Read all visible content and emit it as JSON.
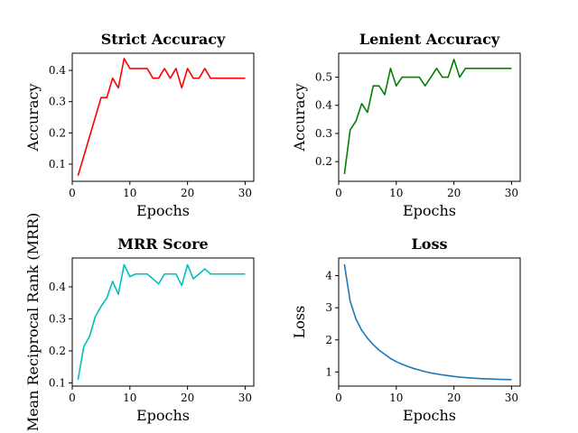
{
  "chart_data": [
    {
      "type": "line",
      "title": "Strict Accuracy",
      "xlabel": "Epochs",
      "ylabel": "Accuracy",
      "color": "#ff0000",
      "xlim": [
        0,
        31.5
      ],
      "ylim": [
        0.045,
        0.455
      ],
      "xticks": [
        0,
        10,
        20,
        30
      ],
      "yticks": [
        0.1,
        0.2,
        0.3,
        0.4
      ],
      "ytick_labels": [
        "0.1",
        "0.2",
        "0.3",
        "0.4"
      ],
      "x": [
        1,
        2,
        3,
        4,
        5,
        6,
        7,
        8,
        9,
        10,
        11,
        12,
        13,
        14,
        15,
        16,
        17,
        18,
        19,
        20,
        21,
        22,
        23,
        24,
        25,
        26,
        27,
        28,
        29,
        30
      ],
      "values": [
        0.063,
        0.125,
        0.188,
        0.25,
        0.313,
        0.313,
        0.375,
        0.344,
        0.438,
        0.406,
        0.406,
        0.406,
        0.406,
        0.375,
        0.375,
        0.406,
        0.375,
        0.406,
        0.344,
        0.406,
        0.375,
        0.375,
        0.406,
        0.375,
        0.375,
        0.375,
        0.375,
        0.375,
        0.375,
        0.375
      ]
    },
    {
      "type": "line",
      "title": "Lenient Accuracy",
      "xlabel": "Epochs",
      "ylabel": "Accuracy",
      "color": "#008000",
      "xlim": [
        0,
        31.5
      ],
      "ylim": [
        0.13,
        0.585
      ],
      "xticks": [
        0,
        10,
        20,
        30
      ],
      "yticks": [
        0.2,
        0.3,
        0.4,
        0.5
      ],
      "ytick_labels": [
        "0.2",
        "0.3",
        "0.4",
        "0.5"
      ],
      "x": [
        1,
        2,
        3,
        4,
        5,
        6,
        7,
        8,
        9,
        10,
        11,
        12,
        13,
        14,
        15,
        16,
        17,
        18,
        19,
        20,
        21,
        22,
        23,
        24,
        25,
        26,
        27,
        28,
        29,
        30
      ],
      "values": [
        0.156,
        0.313,
        0.344,
        0.406,
        0.375,
        0.469,
        0.469,
        0.438,
        0.531,
        0.469,
        0.5,
        0.5,
        0.5,
        0.5,
        0.469,
        0.5,
        0.531,
        0.5,
        0.5,
        0.563,
        0.5,
        0.531,
        0.531,
        0.531,
        0.531,
        0.531,
        0.531,
        0.531,
        0.531,
        0.531
      ]
    },
    {
      "type": "line",
      "title": "MRR Score",
      "xlabel": "Epochs",
      "ylabel": "Mean Reciprocal Rank (MRR)",
      "color": "#00bfbf",
      "xlim": [
        0,
        31.5
      ],
      "ylim": [
        0.09,
        0.49
      ],
      "xticks": [
        0,
        10,
        20,
        30
      ],
      "yticks": [
        0.1,
        0.2,
        0.3,
        0.4
      ],
      "ytick_labels": [
        "0.1",
        "0.2",
        "0.3",
        "0.4"
      ],
      "x": [
        1,
        2,
        3,
        4,
        5,
        6,
        7,
        8,
        9,
        10,
        11,
        12,
        13,
        14,
        15,
        16,
        17,
        18,
        19,
        20,
        21,
        22,
        23,
        24,
        25,
        26,
        27,
        28,
        29,
        30
      ],
      "values": [
        0.11,
        0.213,
        0.245,
        0.307,
        0.339,
        0.365,
        0.417,
        0.377,
        0.469,
        0.432,
        0.44,
        0.44,
        0.44,
        0.425,
        0.409,
        0.44,
        0.44,
        0.44,
        0.404,
        0.469,
        0.425,
        0.44,
        0.456,
        0.44,
        0.44,
        0.44,
        0.44,
        0.44,
        0.44,
        0.44
      ]
    },
    {
      "type": "line",
      "title": "Loss",
      "xlabel": "Epochs",
      "ylabel": "Loss",
      "color": "#1f77b4",
      "xlim": [
        0,
        31.5
      ],
      "ylim": [
        0.56,
        4.55
      ],
      "xticks": [
        0,
        10,
        20,
        30
      ],
      "yticks": [
        1,
        2,
        3,
        4
      ],
      "ytick_labels": [
        "1",
        "2",
        "3",
        "4"
      ],
      "x": [
        1,
        2,
        3,
        4,
        5,
        6,
        7,
        8,
        9,
        10,
        11,
        12,
        13,
        14,
        15,
        16,
        17,
        18,
        19,
        20,
        21,
        22,
        23,
        24,
        25,
        26,
        27,
        28,
        29,
        30
      ],
      "values": [
        4.35,
        3.2,
        2.65,
        2.3,
        2.05,
        1.85,
        1.68,
        1.55,
        1.42,
        1.32,
        1.24,
        1.17,
        1.11,
        1.06,
        1.01,
        0.97,
        0.94,
        0.91,
        0.885,
        0.86,
        0.84,
        0.825,
        0.81,
        0.8,
        0.79,
        0.782,
        0.776,
        0.77,
        0.766,
        0.762
      ]
    }
  ]
}
